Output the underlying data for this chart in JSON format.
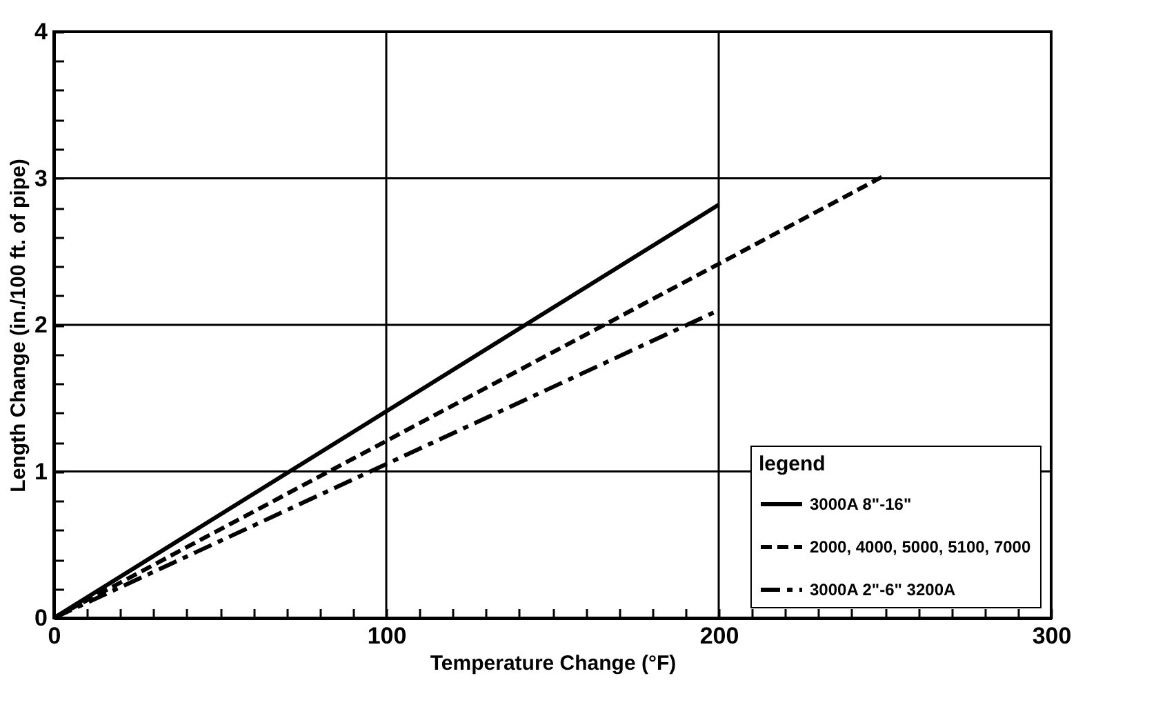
{
  "chart_data": {
    "type": "line",
    "xlabel": "Temperature Change (°F)",
    "ylabel": "Length Change (in./100 ft. of pipe)",
    "legend_title": "legend",
    "legend": "bottom right",
    "grid": true,
    "marker": "none",
    "xlim": [
      0,
      300
    ],
    "ylim": [
      0,
      4
    ],
    "xticks": [
      0,
      {
        "value": 10,
        "label": null
      },
      {
        "value": 20,
        "label": null
      },
      {
        "value": 30,
        "label": null
      },
      {
        "value": 40,
        "label": null
      },
      {
        "value": 50,
        "label": null
      },
      {
        "value": 60,
        "label": null
      },
      {
        "value": 70,
        "label": null
      },
      {
        "value": 80,
        "label": null
      },
      {
        "value": 90,
        "label": null
      },
      100,
      {
        "value": 110,
        "label": null
      },
      {
        "value": 120,
        "label": null
      },
      {
        "value": 130,
        "label": null
      },
      {
        "value": 140,
        "label": null
      },
      {
        "value": 150,
        "label": null
      },
      {
        "value": 160,
        "label": null
      },
      {
        "value": 170,
        "label": null
      },
      {
        "value": 180,
        "label": null
      },
      {
        "value": 190,
        "label": null
      },
      200,
      {
        "value": 210,
        "label": null
      },
      {
        "value": 220,
        "label": null
      },
      {
        "value": 230,
        "label": null
      },
      {
        "value": 240,
        "label": null
      },
      {
        "value": 250,
        "label": null
      },
      {
        "value": 260,
        "label": null
      },
      {
        "value": 270,
        "label": null
      },
      {
        "value": 280,
        "label": null
      },
      {
        "value": 290,
        "label": null
      },
      300
    ],
    "yticks": [
      0,
      {
        "value": 0.2,
        "label": null
      },
      {
        "value": 0.4,
        "label": null
      },
      {
        "value": 0.6,
        "label": null
      },
      {
        "value": 0.8,
        "label": null
      },
      1,
      {
        "value": 1.2,
        "label": null
      },
      {
        "value": 1.4,
        "label": null
      },
      {
        "value": 1.6,
        "label": null
      },
      {
        "value": 1.8,
        "label": null
      },
      2,
      {
        "value": 2.2,
        "label": null
      },
      {
        "value": 2.4,
        "label": null
      },
      {
        "value": 2.6,
        "label": null
      },
      {
        "value": 2.8,
        "label": null
      },
      3,
      {
        "value": 3.2,
        "label": null
      },
      {
        "value": 3.4,
        "label": null
      },
      {
        "value": 3.6,
        "label": null
      },
      {
        "value": 3.8,
        "label": null
      },
      4
    ],
    "series": [
      {
        "name": "3000A 8\"-16\"",
        "color": "#000000",
        "line_style": "solid",
        "x": [
          0,
          200
        ],
        "values": [
          0,
          2.82
        ]
      },
      {
        "name": "2000, 4000, 5000, 5100, 7000",
        "color": "#000000",
        "line_style": "dashed",
        "x": [
          0,
          250
        ],
        "values": [
          0,
          3.02
        ]
      },
      {
        "name": "3000A 2\"-6\" 3200A",
        "color": "#000000",
        "line_style": "dashdot",
        "x": [
          0,
          200
        ],
        "values": [
          0,
          2.1
        ]
      }
    ]
  }
}
